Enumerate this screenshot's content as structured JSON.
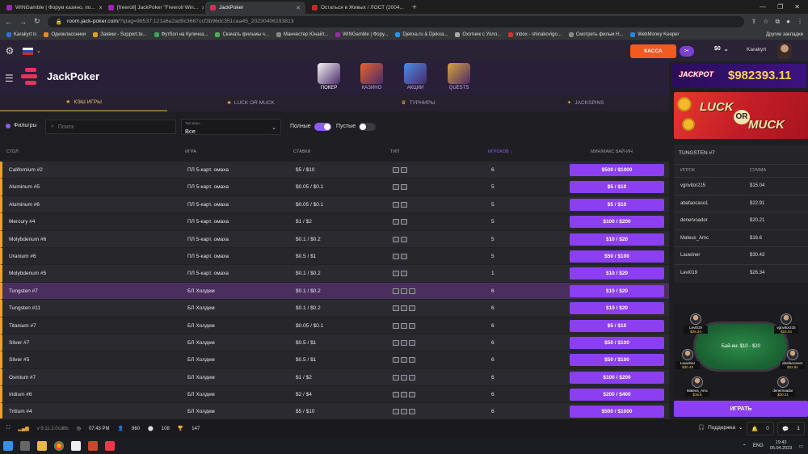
{
  "browser": {
    "tabs": [
      {
        "title": "WINGamble | Форум казино, по...",
        "color": "#9b27af",
        "active": false
      },
      {
        "title": "[freeroll] JackPoker \"Freeroll Win...",
        "color": "#9b27af",
        "active": false
      },
      {
        "title": "JackPoker",
        "color": "#d32f5a",
        "active": true
      },
      {
        "title": "Остаться в Живых / ЛОСТ (2004...",
        "color": "#c62828",
        "active": false
      }
    ],
    "url_host": "room.jack-poker.com",
    "url_path": "/?qtag=98537.121a6a2ad9c3667ccf3b96dc351caa45_20230406193813",
    "bookmarks": [
      {
        "label": "Karakyrt ls",
        "color": "#2f6fe0"
      },
      {
        "label": "Одноклассники",
        "color": "#f28a1a"
      },
      {
        "label": "Заявки - Support.te...",
        "color": "#e0a020"
      },
      {
        "label": "Футбол на Куличка...",
        "color": "#3aa655"
      },
      {
        "label": "Скачать фильмы ч...",
        "color": "#4caf50"
      },
      {
        "label": "Манчестер Юнайт...",
        "color": "#888888"
      },
      {
        "label": "WINGamble | Фору...",
        "color": "#9b27af"
      },
      {
        "label": "Djekxa.ru & Djekxa...",
        "color": "#2196f3"
      },
      {
        "label": "Охотник с Уолл...",
        "color": "#aaaaaa"
      },
      {
        "label": "Inbox - shinakovigo...",
        "color": "#d93025"
      },
      {
        "label": "Смотреть фильм Н...",
        "color": "#888888"
      },
      {
        "label": "WebMoney Keeper",
        "color": "#1e88e5"
      }
    ],
    "bookmarks_other": "Другие закладки"
  },
  "site": {
    "cashier_label": "КАССА",
    "balance": "$0",
    "username": "Karakyrt",
    "logo_text": "JackPoker",
    "nav": [
      {
        "label": "ПОКЕР",
        "active": true,
        "color": "#f4f4f4"
      },
      {
        "label": "КАЗИНО",
        "active": false,
        "color": "#e8632a"
      },
      {
        "label": "АКЦИИ",
        "active": false,
        "color": "#4a8ee8"
      },
      {
        "label": "QUESTS",
        "active": false,
        "color": "#d9a43a"
      }
    ],
    "game_tabs": [
      {
        "label": "КЭШ ИГРЫ",
        "active": true,
        "icon": "★"
      },
      {
        "label": "LUCK OR MUCK",
        "active": false,
        "icon": "♣"
      },
      {
        "label": "ТУРНИРЫ",
        "active": false,
        "icon": "♛"
      },
      {
        "label": "JACKSPINS",
        "active": false,
        "icon": "✦"
      }
    ],
    "filters": {
      "filter_label": "Фильтры",
      "search_placeholder": "Поиск",
      "game_type_label": "Тип игры",
      "game_type_value": "Все",
      "full_label": "Полные",
      "full_on": true,
      "empty_label": "Пустые",
      "empty_on": false
    },
    "table_headers": {
      "table": "СТОЛ",
      "game": "ИГРА",
      "stakes": "СТАВКИ",
      "type": "ТИП",
      "players": "ИГРОКОВ ↓",
      "buyin": "МИН/МАКС БАЙ-ИН"
    },
    "rows": [
      {
        "table": "Californium #2",
        "game": "ПЛ 5-карт. омаха",
        "stakes": "$5 / $10",
        "players": "6",
        "buyin": "$500 / $1000",
        "icons": 2,
        "hl": false
      },
      {
        "table": "Aluminum #5",
        "game": "ПЛ 5-карт. омаха",
        "stakes": "$0.05 / $0.1",
        "players": "5",
        "buyin": "$5 / $10",
        "icons": 2,
        "hl": false
      },
      {
        "table": "Aluminum #6",
        "game": "ПЛ 5-карт. омаха",
        "stakes": "$0.05 / $0.1",
        "players": "5",
        "buyin": "$5 / $10",
        "icons": 2,
        "hl": false
      },
      {
        "table": "Mercury #4",
        "game": "ПЛ 5-карт. омаха",
        "stakes": "$1 / $2",
        "players": "5",
        "buyin": "$100 / $200",
        "icons": 2,
        "hl": false
      },
      {
        "table": "Molybdenum #6",
        "game": "ПЛ 5-карт. омаха",
        "stakes": "$0.1 / $0.2",
        "players": "5",
        "buyin": "$10 / $20",
        "icons": 2,
        "hl": false
      },
      {
        "table": "Uranium #6",
        "game": "ПЛ 5-карт. омаха",
        "stakes": "$0.5 / $1",
        "players": "5",
        "buyin": "$50 / $100",
        "icons": 2,
        "hl": false
      },
      {
        "table": "Molybdenum #5",
        "game": "ПЛ 5-карт. омаха",
        "stakes": "$0.1 / $0.2",
        "players": "1",
        "buyin": "$10 / $20",
        "icons": 2,
        "hl": false
      },
      {
        "table": "Tungsten #7",
        "game": "БЛ Холдем",
        "stakes": "$0.1 / $0.2",
        "players": "6",
        "buyin": "$10 / $20",
        "icons": 3,
        "hl": true
      },
      {
        "table": "Tungsten #11",
        "game": "БЛ Холдем",
        "stakes": "$0.1 / $0.2",
        "players": "6",
        "buyin": "$10 / $20",
        "icons": 3,
        "hl": false
      },
      {
        "table": "Titanium #7",
        "game": "БЛ Холдем",
        "stakes": "$0.05 / $0.1",
        "players": "6",
        "buyin": "$5 / $10",
        "icons": 3,
        "hl": false
      },
      {
        "table": "Silver #7",
        "game": "БЛ Холдем",
        "stakes": "$0.5 / $1",
        "players": "6",
        "buyin": "$50 / $100",
        "icons": 3,
        "hl": false
      },
      {
        "table": "Silver #5",
        "game": "БЛ Холдем",
        "stakes": "$0.5 / $1",
        "players": "6",
        "buyin": "$50 / $100",
        "icons": 3,
        "hl": false
      },
      {
        "table": "Osmium #7",
        "game": "БЛ Холдем",
        "stakes": "$1 / $2",
        "players": "6",
        "buyin": "$100 / $200",
        "icons": 3,
        "hl": false
      },
      {
        "table": "Iridium #6",
        "game": "БЛ Холдем",
        "stakes": "$2 / $4",
        "players": "6",
        "buyin": "$200 / $400",
        "icons": 3,
        "hl": false
      },
      {
        "table": "Tritium #4",
        "game": "БЛ Холдем",
        "stakes": "$5 / $10",
        "players": "6",
        "buyin": "$500 / $1000",
        "icons": 3,
        "hl": false
      }
    ],
    "jackpot": {
      "word": "JACKPOT",
      "amount": "$982393.11"
    },
    "luck_banner": {
      "luck": "LUCK",
      "or": "OR",
      "muck": "MUCK"
    },
    "table_info": {
      "title": "TUNGSTEN #7",
      "col_player": "ИГРОК",
      "col_sum": "СУММА",
      "players": [
        {
          "name": "vgnvitor215",
          "sum": "$15.04"
        },
        {
          "name": "abafaocaso1",
          "sum": "$22.91"
        },
        {
          "name": "denervoador",
          "sum": "$20.21"
        },
        {
          "name": "Mateus_Amc",
          "sum": "$16.6"
        },
        {
          "name": "Lauwiner",
          "sum": "$30.43"
        },
        {
          "name": "Levi019",
          "sum": "$26.34"
        }
      ]
    },
    "preview": {
      "felt_text": "Бай-ин: $10 - $20",
      "seats": [
        {
          "name": "Levi019",
          "stack": "$26.34"
        },
        {
          "name": "vgnvitor215",
          "stack": "$15.04"
        },
        {
          "name": "Lauwiner",
          "stack": "$30.43"
        },
        {
          "name": "abafaocaso1",
          "stack": "$22.91"
        },
        {
          "name": "Mateus_Amc",
          "stack": "$16.6"
        },
        {
          "name": "denervoador",
          "stack": "$20.21"
        }
      ]
    },
    "play_label": "ИГРАТЬ",
    "status": {
      "version": "v 9.11.2.0cd8b",
      "time": "07:43 PM",
      "players_online": "960",
      "tables": "108",
      "tournaments": "147",
      "support_label": "Поддержка",
      "notif_count": "0",
      "msg_count": "1"
    }
  },
  "taskbar": {
    "lang": "ENG",
    "time": "19:43",
    "date": "06.04.2023"
  }
}
